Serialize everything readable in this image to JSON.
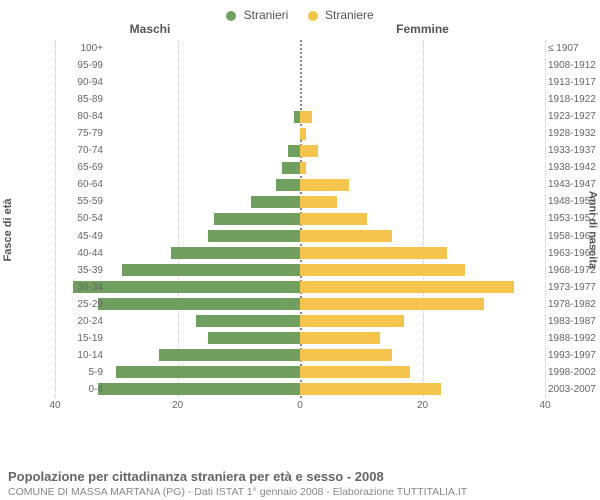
{
  "legend": {
    "male": {
      "label": "Stranieri",
      "color": "#719f60"
    },
    "female": {
      "label": "Straniere",
      "color": "#f4c44d"
    }
  },
  "headers": {
    "left": "Maschi",
    "right": "Femmine"
  },
  "axis_titles": {
    "left": "Fasce di età",
    "right": "Anni di nascita"
  },
  "title": "Popolazione per cittadinanza straniera per età e sesso - 2008",
  "subtitle": "COMUNE DI MASSA MARTANA (PG) - Dati ISTAT 1° gennaio 2008 - Elaborazione TUTTITALIA.IT",
  "chart": {
    "type": "population-pyramid",
    "xlim": 40,
    "xticks_left": [
      40,
      20,
      0
    ],
    "xticks_right": [
      0,
      20,
      40
    ],
    "bar_colors": {
      "male": "#719f60",
      "female": "#f4c44d"
    },
    "background": "#ffffff",
    "grid_color": "#cccccc",
    "bar_height_ratio": 0.7,
    "rows": [
      {
        "age": "100+",
        "birth": "≤ 1907",
        "male": 0,
        "female": 0
      },
      {
        "age": "95-99",
        "birth": "1908-1912",
        "male": 0,
        "female": 0
      },
      {
        "age": "90-94",
        "birth": "1913-1917",
        "male": 0,
        "female": 0
      },
      {
        "age": "85-89",
        "birth": "1918-1922",
        "male": 0,
        "female": 0
      },
      {
        "age": "80-84",
        "birth": "1923-1927",
        "male": 1,
        "female": 2
      },
      {
        "age": "75-79",
        "birth": "1928-1932",
        "male": 0,
        "female": 1
      },
      {
        "age": "70-74",
        "birth": "1933-1937",
        "male": 2,
        "female": 3
      },
      {
        "age": "65-69",
        "birth": "1938-1942",
        "male": 3,
        "female": 1
      },
      {
        "age": "60-64",
        "birth": "1943-1947",
        "male": 4,
        "female": 8
      },
      {
        "age": "55-59",
        "birth": "1948-1952",
        "male": 8,
        "female": 6
      },
      {
        "age": "50-54",
        "birth": "1953-1957",
        "male": 14,
        "female": 11
      },
      {
        "age": "45-49",
        "birth": "1958-1962",
        "male": 15,
        "female": 15
      },
      {
        "age": "40-44",
        "birth": "1963-1967",
        "male": 21,
        "female": 24
      },
      {
        "age": "35-39",
        "birth": "1968-1972",
        "male": 29,
        "female": 27
      },
      {
        "age": "30-34",
        "birth": "1973-1977",
        "male": 37,
        "female": 35
      },
      {
        "age": "25-29",
        "birth": "1978-1982",
        "male": 33,
        "female": 30
      },
      {
        "age": "20-24",
        "birth": "1983-1987",
        "male": 17,
        "female": 17
      },
      {
        "age": "15-19",
        "birth": "1988-1992",
        "male": 15,
        "female": 13
      },
      {
        "age": "10-14",
        "birth": "1993-1997",
        "male": 23,
        "female": 15
      },
      {
        "age": "5-9",
        "birth": "1998-2002",
        "male": 30,
        "female": 18
      },
      {
        "age": "0-4",
        "birth": "2003-2007",
        "male": 33,
        "female": 23
      }
    ]
  }
}
